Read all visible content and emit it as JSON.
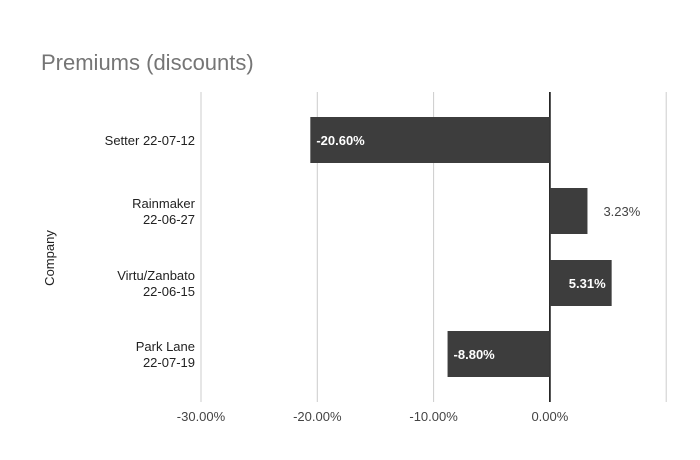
{
  "chart_data": {
    "type": "bar",
    "orientation": "horizontal",
    "title": "Premiums (discounts)",
    "ylabel": "Company",
    "xlabel": "",
    "categories": [
      [
        "Setter 22-07-12"
      ],
      [
        "Rainmaker",
        "22-06-27"
      ],
      [
        "Virtu/Zanbato",
        "22-06-15"
      ],
      [
        "Park Lane",
        "22-07-19"
      ]
    ],
    "values": [
      -20.6,
      3.23,
      5.31,
      -8.8
    ],
    "data_labels": [
      "-20.60%",
      "3.23%",
      "5.31%",
      "-8.80%"
    ],
    "xlim": [
      -30,
      10
    ],
    "x_ticks": [
      -30,
      -20,
      -10,
      0
    ],
    "x_tick_labels": [
      "-30.00%",
      "-20.00%",
      "-10.00%",
      "0.00%"
    ],
    "grid": true,
    "legend": "none",
    "bar_color": "#3d3d3d",
    "zero_line_color": "#000000",
    "grid_color": "#cccccc"
  }
}
